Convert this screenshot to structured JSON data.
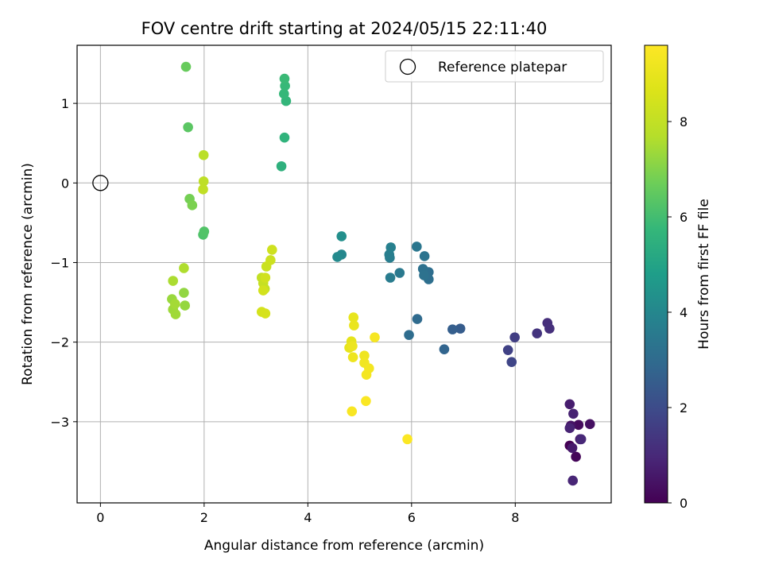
{
  "chart_data": {
    "type": "scatter",
    "title": "FOV centre drift starting at 2024/05/15 22:11:40",
    "xlabel": "Angular distance from reference (arcmin)",
    "ylabel": "Rotation from reference (arcmin)",
    "xlim": [
      -0.45,
      9.85
    ],
    "ylim": [
      -4.02,
      1.73
    ],
    "xticks": [
      0,
      2,
      4,
      6,
      8
    ],
    "yticks": [
      1,
      0,
      -1,
      -2,
      -3
    ],
    "xtick_labels": [
      "0",
      "2",
      "4",
      "6",
      "8"
    ],
    "ytick_labels": [
      "1",
      "0",
      "−1",
      "−2",
      "−3"
    ],
    "grid": true,
    "legend": {
      "placement": "top-right",
      "entries": [
        "Reference platepar"
      ]
    },
    "reference_point": {
      "x": 0,
      "y": 0,
      "label": "Reference platepar"
    },
    "colorbar": {
      "label": "Hours from first FF file",
      "range": [
        0,
        9.6
      ],
      "ticks": [
        0,
        2,
        4,
        6,
        8
      ],
      "tick_labels": [
        "0",
        "2",
        "4",
        "6",
        "8"
      ],
      "colormap": "viridis"
    },
    "points": [
      {
        "x": 9.05,
        "y": -3.3,
        "h": 0.0
      },
      {
        "x": 9.17,
        "y": -3.44,
        "h": 0.1
      },
      {
        "x": 9.22,
        "y": -3.04,
        "h": 0.25
      },
      {
        "x": 9.44,
        "y": -3.03,
        "h": 0.35
      },
      {
        "x": 9.07,
        "y": -3.05,
        "h": 0.45
      },
      {
        "x": 9.25,
        "y": -3.22,
        "h": 0.55
      },
      {
        "x": 9.1,
        "y": -3.33,
        "h": 0.6
      },
      {
        "x": 9.05,
        "y": -2.78,
        "h": 0.7
      },
      {
        "x": 9.12,
        "y": -2.9,
        "h": 0.8
      },
      {
        "x": 9.05,
        "y": -3.08,
        "h": 0.85
      },
      {
        "x": 9.11,
        "y": -3.74,
        "h": 0.9
      },
      {
        "x": 9.27,
        "y": -3.22,
        "h": 0.95
      },
      {
        "x": 8.62,
        "y": -1.76,
        "h": 1.15
      },
      {
        "x": 8.66,
        "y": -1.83,
        "h": 1.2
      },
      {
        "x": 8.42,
        "y": -1.89,
        "h": 1.3
      },
      {
        "x": 7.99,
        "y": -1.94,
        "h": 1.6
      },
      {
        "x": 7.86,
        "y": -2.1,
        "h": 1.7
      },
      {
        "x": 7.93,
        "y": -2.25,
        "h": 1.8
      },
      {
        "x": 6.94,
        "y": -1.83,
        "h": 2.5
      },
      {
        "x": 6.79,
        "y": -1.84,
        "h": 2.6
      },
      {
        "x": 6.63,
        "y": -2.09,
        "h": 2.8
      },
      {
        "x": 6.11,
        "y": -1.71,
        "h": 3.0
      },
      {
        "x": 5.95,
        "y": -1.91,
        "h": 3.05
      },
      {
        "x": 6.33,
        "y": -1.12,
        "h": 3.1
      },
      {
        "x": 6.33,
        "y": -1.21,
        "h": 3.15
      },
      {
        "x": 6.22,
        "y": -1.08,
        "h": 3.2
      },
      {
        "x": 6.24,
        "y": -1.16,
        "h": 3.25
      },
      {
        "x": 6.25,
        "y": -0.92,
        "h": 3.3
      },
      {
        "x": 6.1,
        "y": -0.8,
        "h": 3.4
      },
      {
        "x": 5.77,
        "y": -1.13,
        "h": 3.5
      },
      {
        "x": 5.59,
        "y": -1.19,
        "h": 3.6
      },
      {
        "x": 5.58,
        "y": -0.94,
        "h": 3.65
      },
      {
        "x": 5.57,
        "y": -0.9,
        "h": 3.7
      },
      {
        "x": 5.6,
        "y": -0.81,
        "h": 3.75
      },
      {
        "x": 4.65,
        "y": -0.9,
        "h": 4.0
      },
      {
        "x": 4.57,
        "y": -0.93,
        "h": 4.1
      },
      {
        "x": 4.65,
        "y": -0.67,
        "h": 4.3
      },
      {
        "x": 3.49,
        "y": 0.21,
        "h": 5.5
      },
      {
        "x": 3.55,
        "y": 0.57,
        "h": 5.6
      },
      {
        "x": 3.58,
        "y": 1.03,
        "h": 5.7
      },
      {
        "x": 3.54,
        "y": 1.12,
        "h": 5.75
      },
      {
        "x": 3.56,
        "y": 1.22,
        "h": 5.8
      },
      {
        "x": 3.55,
        "y": 1.31,
        "h": 5.85
      },
      {
        "x": 1.98,
        "y": -0.65,
        "h": 6.2
      },
      {
        "x": 2.0,
        "y": -0.61,
        "h": 6.25
      },
      {
        "x": 1.69,
        "y": 0.7,
        "h": 6.4
      },
      {
        "x": 1.65,
        "y": 1.46,
        "h": 6.6
      },
      {
        "x": 1.72,
        "y": -0.2,
        "h": 6.8
      },
      {
        "x": 1.77,
        "y": -0.28,
        "h": 6.9
      },
      {
        "x": 1.61,
        "y": -1.38,
        "h": 7.2
      },
      {
        "x": 1.63,
        "y": -1.54,
        "h": 7.25
      },
      {
        "x": 1.38,
        "y": -1.46,
        "h": 7.3
      },
      {
        "x": 1.4,
        "y": -1.59,
        "h": 7.35
      },
      {
        "x": 1.45,
        "y": -1.65,
        "h": 7.4
      },
      {
        "x": 1.44,
        "y": -1.52,
        "h": 7.45
      },
      {
        "x": 1.4,
        "y": -1.23,
        "h": 7.55
      },
      {
        "x": 1.61,
        "y": -1.07,
        "h": 7.6
      },
      {
        "x": 1.99,
        "y": 0.35,
        "h": 7.8
      },
      {
        "x": 1.99,
        "y": 0.02,
        "h": 7.9
      },
      {
        "x": 1.98,
        "y": -0.08,
        "h": 7.95
      },
      {
        "x": 3.11,
        "y": -1.19,
        "h": 8.0
      },
      {
        "x": 3.17,
        "y": -1.33,
        "h": 8.05
      },
      {
        "x": 3.14,
        "y": -1.26,
        "h": 8.1
      },
      {
        "x": 3.2,
        "y": -1.05,
        "h": 8.2
      },
      {
        "x": 3.28,
        "y": -0.97,
        "h": 8.25
      },
      {
        "x": 3.31,
        "y": -0.84,
        "h": 8.3
      },
      {
        "x": 3.18,
        "y": -1.19,
        "h": 8.35
      },
      {
        "x": 3.14,
        "y": -1.35,
        "h": 8.4
      },
      {
        "x": 3.11,
        "y": -1.62,
        "h": 8.45
      },
      {
        "x": 3.18,
        "y": -1.64,
        "h": 8.5
      },
      {
        "x": 4.84,
        "y": -1.99,
        "h": 8.9
      },
      {
        "x": 4.8,
        "y": -2.07,
        "h": 8.95
      },
      {
        "x": 4.88,
        "y": -1.69,
        "h": 9.0
      },
      {
        "x": 4.89,
        "y": -1.79,
        "h": 9.05
      },
      {
        "x": 4.86,
        "y": -2.05,
        "h": 9.1
      },
      {
        "x": 4.87,
        "y": -2.19,
        "h": 9.15
      },
      {
        "x": 5.09,
        "y": -2.17,
        "h": 9.2
      },
      {
        "x": 5.09,
        "y": -2.26,
        "h": 9.25
      },
      {
        "x": 5.18,
        "y": -2.33,
        "h": 9.3
      },
      {
        "x": 5.13,
        "y": -2.41,
        "h": 9.35
      },
      {
        "x": 5.29,
        "y": -1.94,
        "h": 9.4
      },
      {
        "x": 4.85,
        "y": -2.87,
        "h": 9.45
      },
      {
        "x": 5.12,
        "y": -2.74,
        "h": 9.5
      },
      {
        "x": 5.92,
        "y": -3.22,
        "h": 9.55
      }
    ]
  }
}
